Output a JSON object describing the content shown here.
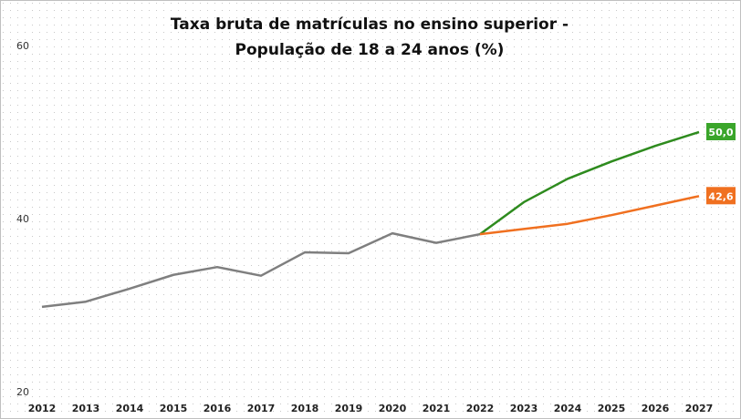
{
  "chart_data": {
    "type": "line",
    "title_lines": [
      "Taxa bruta de matrículas no ensino superior -",
      "População de 18 a 24 anos (%)"
    ],
    "xlabel": "",
    "ylabel": "",
    "x": [
      2012,
      2013,
      2014,
      2015,
      2016,
      2017,
      2018,
      2019,
      2020,
      2021,
      2022,
      2023,
      2024,
      2025,
      2026,
      2027
    ],
    "x_tick_labels": [
      "2012",
      "2013",
      "2014",
      "2015",
      "2016",
      "2017",
      "2018",
      "2019",
      "2020",
      "2021",
      "2022",
      "2023",
      "2024",
      "2025",
      "2026",
      "2027"
    ],
    "ylim": [
      20,
      60
    ],
    "y_ticks": [
      20,
      40,
      60
    ],
    "y_tick_labels": [
      "20",
      "40",
      "60"
    ],
    "grid": "dotted background",
    "legend": "none",
    "series": [
      {
        "color": "#7f7f7f",
        "x": [
          2012,
          2013,
          2014,
          2015,
          2016,
          2017,
          2018,
          2019,
          2020,
          2021,
          2022
        ],
        "values": [
          29.8,
          30.4,
          31.9,
          33.5,
          34.4,
          33.4,
          36.1,
          36.0,
          38.3,
          37.2,
          38.2
        ]
      },
      {
        "color": "#2e8b1e",
        "x": [
          2022,
          2023,
          2024,
          2025,
          2026,
          2027
        ],
        "values": [
          38.2,
          41.9,
          44.6,
          46.6,
          48.4,
          50.0
        ],
        "end_label": "50,0",
        "label_bg": "#3aa52a"
      },
      {
        "color": "#f07020",
        "x": [
          2022,
          2023,
          2024,
          2025,
          2026,
          2027
        ],
        "values": [
          38.2,
          38.8,
          39.4,
          40.4,
          41.5,
          42.6
        ],
        "end_label": "42,6",
        "label_bg": "#f07020"
      }
    ]
  }
}
